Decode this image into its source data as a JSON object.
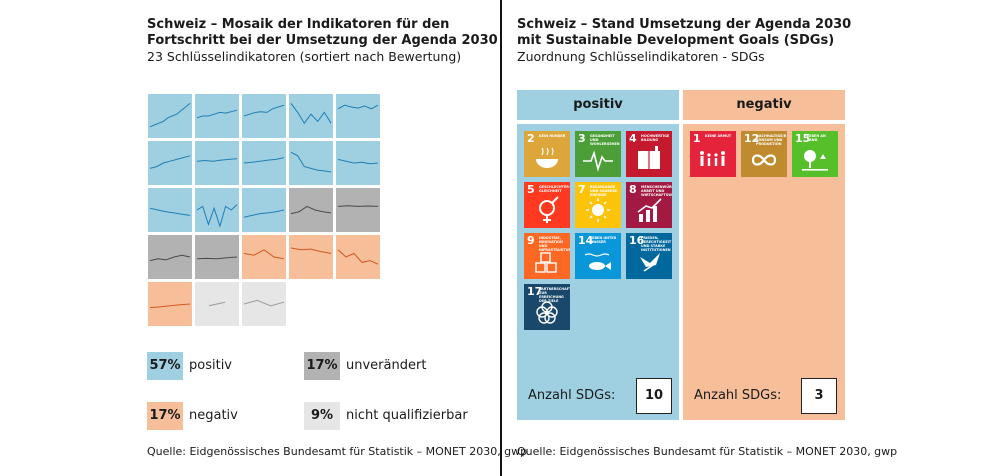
{
  "left": {
    "title_line1": "Schweiz – Mosaik der Indikatoren für den",
    "title_line2": "Fortschritt bei der Umsetzung der Agenda 2030",
    "subtitle": "23 Schlüsselindikatoren (sortiert nach Bewertung)",
    "source": "Quelle: Eidgenössisches Bundesamt für Statistik – MONET 2030, gwp"
  },
  "right": {
    "title_line1": "Schweiz – Stand Umsetzung der Agenda 2030",
    "title_line2": "mit Sustainable Development Goals (SDGs)",
    "subtitle": "Zuordnung Schlüsselindikatoren - SDGs",
    "source": "Quelle: Eidgenössisches Bundesamt für Statistik – MONET 2030, gwp"
  },
  "colors": {
    "positiv": "#9fd0e2",
    "negativ": "#f6bf9a",
    "unveraendert": "#b2b2b2",
    "nicht_qualifizierbar": "#e6e6e6",
    "line_positiv": "#1f7fb4",
    "line_negativ": "#d2581f",
    "line_grey": "#4a4a4a",
    "line_light": "#9a9a9a"
  },
  "chart_data": [
    {
      "type": "heatmap",
      "title": "Schweiz – Mosaik der Indikatoren für den Fortschritt bei der Umsetzung der Agenda 2030",
      "subtitle": "23 Schlüsselindikatoren (sortiert nach Bewertung)",
      "tiles": [
        {
          "status": "positiv",
          "trend": [
            0.2,
            0.25,
            0.3,
            0.35,
            0.45,
            0.5,
            0.55,
            0.65,
            0.75,
            0.85
          ]
        },
        {
          "status": "positiv",
          "trend": [
            0.45,
            0.5,
            0.5,
            0.55,
            0.6,
            0.58,
            0.62,
            0.66
          ]
        },
        {
          "status": "positiv",
          "trend": [
            0.5,
            0.55,
            0.6,
            0.62,
            0.6,
            0.7,
            0.75,
            0.8
          ]
        },
        {
          "status": "positiv",
          "trend": [
            0.85,
            0.6,
            0.3,
            0.55,
            0.35,
            0.6,
            0.3
          ]
        },
        {
          "status": "positiv",
          "trend": [
            0.7,
            0.8,
            0.75,
            0.72,
            0.78,
            0.7,
            0.8
          ]
        },
        {
          "status": "positiv",
          "trend": [
            0.35,
            0.4,
            0.5,
            0.55,
            0.6,
            0.65,
            0.7
          ]
        },
        {
          "status": "positiv",
          "trend": [
            0.55,
            0.57,
            0.55,
            0.58,
            0.6,
            0.62
          ]
        },
        {
          "status": "positiv",
          "trend": [
            0.5,
            0.52,
            0.55,
            0.58,
            0.6,
            0.65
          ]
        },
        {
          "status": "positiv",
          "trend": [
            0.8,
            0.7,
            0.4,
            0.35,
            0.3,
            0.28,
            0.25
          ]
        },
        {
          "status": "positiv",
          "trend": [
            0.6,
            0.55,
            0.5,
            0.52,
            0.48,
            0.5
          ]
        },
        {
          "status": "positiv",
          "trend": [
            0.55,
            0.5,
            0.45,
            0.42,
            0.38,
            0.35
          ]
        },
        {
          "status": "positiv",
          "trend": [
            0.5,
            0.6,
            0.1,
            0.55,
            0.05,
            0.6,
            0.5,
            0.65
          ]
        },
        {
          "status": "positiv",
          "trend": [
            0.3,
            0.35,
            0.4,
            0.42,
            0.45,
            0.5
          ]
        },
        {
          "status": "unverändert",
          "trend": [
            0.4,
            0.45,
            0.6,
            0.5,
            0.45,
            0.42
          ]
        },
        {
          "status": "unverändert",
          "trend": [
            0.6,
            0.62,
            0.6,
            0.61,
            0.6
          ]
        },
        {
          "status": "unverändert",
          "trend": [
            0.4,
            0.45,
            0.42,
            0.5,
            0.55,
            0.5
          ]
        },
        {
          "status": "unverändert",
          "trend": [
            0.45,
            0.46,
            0.45,
            0.48,
            0.5
          ]
        },
        {
          "status": "negativ",
          "trend": [
            0.6,
            0.55,
            0.7,
            0.5,
            0.45
          ]
        },
        {
          "status": "negativ",
          "trend": [
            0.75,
            0.7,
            0.72,
            0.65,
            0.6
          ]
        },
        {
          "status": "negativ",
          "trend": [
            0.7,
            0.5,
            0.6,
            0.35,
            0.4,
            0.3
          ]
        },
        {
          "status": "negativ",
          "trend": [
            0.4,
            0.42,
            0.45,
            0.48,
            0.5
          ]
        },
        {
          "status": "nicht qualifizierbar",
          "trend": [
            0.45,
            0.5,
            0.55
          ]
        },
        {
          "status": "nicht qualifizierbar",
          "trend": [
            0.5,
            0.6,
            0.45,
            0.55
          ]
        }
      ],
      "legend": [
        {
          "key": "positiv",
          "value": "57%",
          "label": "positiv"
        },
        {
          "key": "unveraendert",
          "value": "17%",
          "label": "unverändert"
        },
        {
          "key": "negativ",
          "value": "17%",
          "label": "negativ"
        },
        {
          "key": "nicht_qualifizierbar",
          "value": "9%",
          "label": "nicht qualifizierbar"
        }
      ]
    },
    {
      "type": "table",
      "title": "Schweiz – Stand Umsetzung der Agenda 2030 mit Sustainable Development Goals (SDGs)",
      "subtitle": "Zuordnung Schlüsselindikatoren - SDGs",
      "columns": [
        {
          "name": "positiv",
          "count_label": "Anzahl SDGs:",
          "count": "10",
          "sdgs": [
            {
              "number": "2",
              "text": "KEIN HUNGER",
              "color": "#dda63a",
              "icon": "bowl-icon"
            },
            {
              "number": "3",
              "text": "GESUNDHEIT UND WOHLERGEHEN",
              "color": "#4c9f38",
              "icon": "heartbeat-icon"
            },
            {
              "number": "4",
              "text": "HOCHWERTIGE BILDUNG",
              "color": "#c5192d",
              "icon": "book-icon"
            },
            {
              "number": "5",
              "text": "GESCHLECHTER-GLEICHHEIT",
              "color": "#ff3a21",
              "icon": "gender-icon"
            },
            {
              "number": "7",
              "text": "BEZAHLBARE UND SAUBERE ENERGIE",
              "color": "#fcc30b",
              "icon": "sun-icon"
            },
            {
              "number": "8",
              "text": "MENSCHENWÜRDIGE ARBEIT UND WIRTSCHAFTSWACHSTUM",
              "color": "#a21942",
              "icon": "growth-chart-icon"
            },
            {
              "number": "9",
              "text": "INDUSTRIE, INNOVATION UND INFRASTRUKTUR",
              "color": "#fd6925",
              "icon": "cubes-icon"
            },
            {
              "number": "14",
              "text": "LEBEN UNTER WASSER",
              "color": "#0a97d9",
              "icon": "fish-icon"
            },
            {
              "number": "16",
              "text": "FRIEDEN, GERECHTIGKEIT UND STARKE INSTITUTIONEN",
              "color": "#00689d",
              "icon": "dove-icon"
            },
            {
              "number": "17",
              "text": "PARTNERSCHAFTEN ZUR ERREICHUNG DER ZIELE",
              "color": "#19486a",
              "icon": "rings-icon"
            }
          ]
        },
        {
          "name": "negativ",
          "count_label": "Anzahl SDGs:",
          "count": "3",
          "sdgs": [
            {
              "number": "1",
              "text": "KEINE ARMUT",
              "color": "#e5243b",
              "icon": "family-icon"
            },
            {
              "number": "12",
              "text": "NACHHALTIGE/R KONSUM UND PRODUKTION",
              "color": "#bf8b2e",
              "icon": "infinity-icon"
            },
            {
              "number": "15",
              "text": "LEBEN AN LAND",
              "color": "#56c02b",
              "icon": "tree-icon"
            }
          ]
        }
      ]
    }
  ]
}
